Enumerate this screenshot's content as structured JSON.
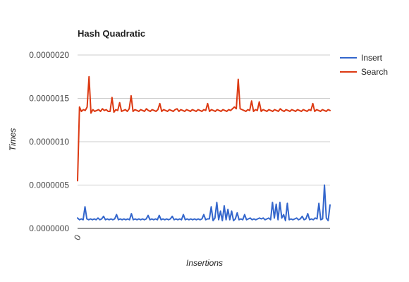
{
  "chart_data": {
    "type": "line",
    "title": "Hash Quadratic",
    "xlabel": "Insertions",
    "ylabel": "Times",
    "ylim": [
      0,
      2e-06
    ],
    "y_ticks": [
      "0.0000000",
      "0.0000005",
      "0.0000010",
      "0.0000015",
      "0.0000020"
    ],
    "x_ticks": [
      "0"
    ],
    "grid": true,
    "legend_position": "right",
    "series": [
      {
        "name": "Insert",
        "color": "#3366cc",
        "values": [
          1.2e-07,
          1e-07,
          1.1e-07,
          1e-07,
          2.5e-07,
          1.1e-07,
          1e-07,
          1.1e-07,
          1e-07,
          1.1e-07,
          1e-07,
          1.2e-07,
          1e-07,
          1.1e-07,
          1.4e-07,
          1e-07,
          1.1e-07,
          1e-07,
          1.1e-07,
          1e-07,
          1.1e-07,
          1.6e-07,
          1e-07,
          1.1e-07,
          1e-07,
          1.1e-07,
          1e-07,
          1.1e-07,
          1e-07,
          1.7e-07,
          1e-07,
          1.1e-07,
          1e-07,
          1.1e-07,
          1e-07,
          1.1e-07,
          1e-07,
          1.1e-07,
          1.5e-07,
          1e-07,
          1.1e-07,
          1e-07,
          1.1e-07,
          1e-07,
          1.5e-07,
          1e-07,
          1.1e-07,
          1e-07,
          1.1e-07,
          1e-07,
          1.1e-07,
          1.4e-07,
          1e-07,
          1.1e-07,
          1e-07,
          1.1e-07,
          1e-07,
          1.6e-07,
          1e-07,
          1.1e-07,
          1e-07,
          1.1e-07,
          1e-07,
          1.1e-07,
          1e-07,
          1.1e-07,
          1e-07,
          1.1e-07,
          1.6e-07,
          1e-07,
          1.1e-07,
          1.1e-07,
          2.5e-07,
          9e-08,
          1.2e-07,
          3e-07,
          1e-07,
          2e-07,
          9e-08,
          2.6e-07,
          1e-07,
          2.2e-07,
          1e-07,
          2e-07,
          9e-08,
          1.1e-07,
          1.8e-07,
          1e-07,
          1.1e-07,
          1e-07,
          1.6e-07,
          1e-07,
          1.1e-07,
          1.2e-07,
          1e-07,
          1.1e-07,
          1e-07,
          1.1e-07,
          1.2e-07,
          1.1e-07,
          1.2e-07,
          1e-07,
          1.1e-07,
          1.2e-07,
          1e-07,
          3e-07,
          1.2e-07,
          2.8e-07,
          1e-07,
          3e-07,
          1.2e-07,
          1.6e-07,
          9e-08,
          2.9e-07,
          1e-07,
          1.1e-07,
          1e-07,
          1.1e-07,
          1.2e-07,
          1e-07,
          1.1e-07,
          1.4e-07,
          1e-07,
          1.1e-07,
          1.7e-07,
          1e-07,
          1.1e-07,
          1e-07,
          1.2e-07,
          1.1e-07,
          2.9e-07,
          1e-07,
          1.1e-07,
          5e-07,
          1.2e-07,
          9e-08,
          2.7e-07
        ]
      },
      {
        "name": "Search",
        "color": "#dc3912",
        "values": [
          5.5e-07,
          1.4e-06,
          1.35e-06,
          1.37e-06,
          1.36e-06,
          1.4e-06,
          1.75e-06,
          1.33e-06,
          1.37e-06,
          1.35e-06,
          1.36e-06,
          1.37e-06,
          1.35e-06,
          1.38e-06,
          1.36e-06,
          1.37e-06,
          1.35e-06,
          1.35e-06,
          1.51e-06,
          1.34e-06,
          1.37e-06,
          1.36e-06,
          1.45e-06,
          1.35e-06,
          1.36e-06,
          1.37e-06,
          1.35e-06,
          1.38e-06,
          1.53e-06,
          1.35e-06,
          1.37e-06,
          1.36e-06,
          1.35e-06,
          1.37e-06,
          1.36e-06,
          1.35e-06,
          1.38e-06,
          1.36e-06,
          1.35e-06,
          1.37e-06,
          1.36e-06,
          1.35e-06,
          1.37e-06,
          1.44e-06,
          1.35e-06,
          1.37e-06,
          1.36e-06,
          1.35e-06,
          1.37e-06,
          1.36e-06,
          1.35e-06,
          1.37e-06,
          1.38e-06,
          1.35e-06,
          1.37e-06,
          1.36e-06,
          1.35e-06,
          1.37e-06,
          1.36e-06,
          1.35e-06,
          1.37e-06,
          1.36e-06,
          1.35e-06,
          1.37e-06,
          1.36e-06,
          1.35e-06,
          1.37e-06,
          1.36e-06,
          1.44e-06,
          1.35e-06,
          1.37e-06,
          1.36e-06,
          1.35e-06,
          1.37e-06,
          1.36e-06,
          1.35e-06,
          1.37e-06,
          1.36e-06,
          1.35e-06,
          1.37e-06,
          1.36e-06,
          1.38e-06,
          1.4e-06,
          1.38e-06,
          1.72e-06,
          1.38e-06,
          1.37e-06,
          1.36e-06,
          1.35e-06,
          1.37e-06,
          1.36e-06,
          1.47e-06,
          1.35e-06,
          1.37e-06,
          1.36e-06,
          1.46e-06,
          1.35e-06,
          1.37e-06,
          1.36e-06,
          1.35e-06,
          1.37e-06,
          1.36e-06,
          1.35e-06,
          1.37e-06,
          1.36e-06,
          1.35e-06,
          1.38e-06,
          1.36e-06,
          1.35e-06,
          1.37e-06,
          1.36e-06,
          1.35e-06,
          1.37e-06,
          1.36e-06,
          1.35e-06,
          1.37e-06,
          1.36e-06,
          1.35e-06,
          1.37e-06,
          1.36e-06,
          1.35e-06,
          1.37e-06,
          1.36e-06,
          1.44e-06,
          1.35e-06,
          1.37e-06,
          1.36e-06,
          1.35e-06,
          1.37e-06,
          1.36e-06,
          1.35e-06,
          1.37e-06,
          1.36e-06
        ]
      }
    ]
  }
}
